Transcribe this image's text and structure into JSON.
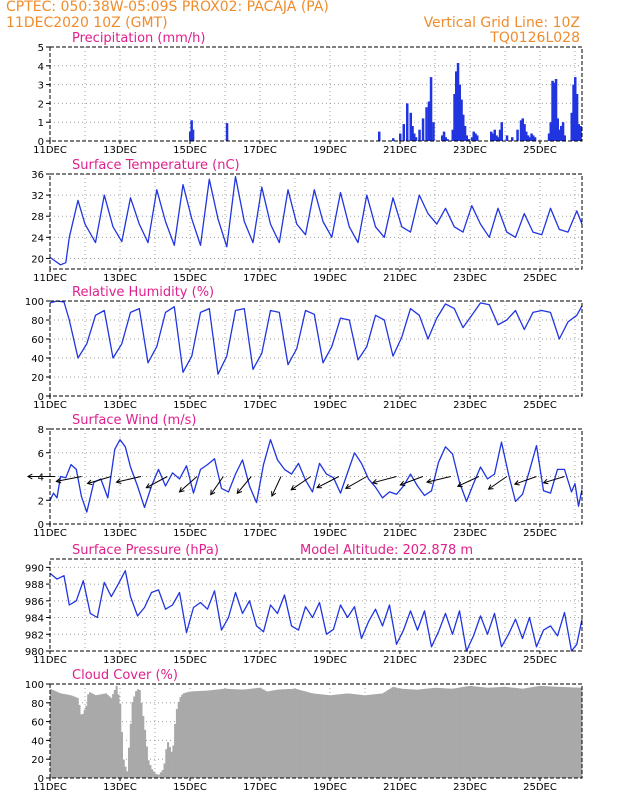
{
  "header": {
    "line1_left": "CPTEC:   050:38W-05:09S   PROX02: PACAJA (PA)",
    "line2_left": "11DEC2020 10Z (GMT)",
    "line1_right": "Vertical Grid Line: 10Z",
    "line2_right": "TQ0126L028"
  },
  "colors": {
    "header": "#f08c2c",
    "panel_title": "#e0208c",
    "series": "#2035e0",
    "cloud": "#a9a9a9",
    "grid": "#a0a0a0"
  },
  "chart_data": [
    {
      "id": "precipitation",
      "type": "bar",
      "title": "Precipitation (mm/h)",
      "x_unit": "days since 11DEC2020 10Z",
      "xlim": [
        0,
        15.2
      ],
      "ylim": [
        0,
        5
      ],
      "yticks": [
        0,
        1,
        2,
        3,
        4,
        5
      ],
      "xtick_labels": [
        "11DEC",
        "13DEC",
        "15DEC",
        "17DEC",
        "19DEC",
        "21DEC",
        "23DEC",
        "25DEC"
      ],
      "x": [
        4.0,
        4.04,
        4.08,
        5.05,
        9.4,
        9.8,
        10.0,
        10.1,
        10.2,
        10.3,
        10.35,
        10.4,
        10.45,
        10.55,
        10.65,
        10.75,
        10.82,
        10.88,
        10.95,
        11.2,
        11.25,
        11.3,
        11.35,
        11.5,
        11.55,
        11.6,
        11.65,
        11.7,
        11.75,
        11.8,
        11.85,
        11.9,
        11.95,
        12.05,
        12.1,
        12.15,
        12.2,
        12.6,
        12.65,
        12.7,
        12.75,
        12.8,
        12.85,
        12.9,
        13.05,
        13.2,
        13.35,
        13.45,
        13.5,
        13.55,
        13.6,
        13.65,
        13.7,
        13.75,
        13.8,
        13.85,
        14.25,
        14.3,
        14.35,
        14.4,
        14.45,
        14.5,
        14.55,
        14.6,
        14.65,
        14.7,
        14.9,
        14.95,
        15.0,
        15.05,
        15.1,
        15.15
      ],
      "values": [
        0.5,
        1.1,
        0.6,
        0.95,
        0.5,
        0.15,
        0.4,
        0.9,
        2.0,
        1.5,
        0.8,
        0.4,
        0.2,
        0.6,
        1.2,
        1.8,
        2.1,
        3.4,
        1.0,
        0.3,
        0.5,
        0.2,
        0.1,
        0.6,
        2.5,
        3.7,
        4.15,
        3.0,
        2.2,
        1.4,
        0.8,
        0.3,
        0.1,
        0.2,
        0.5,
        0.4,
        0.3,
        0.5,
        0.4,
        0.6,
        0.3,
        0.2,
        0.6,
        1.0,
        0.3,
        0.2,
        0.6,
        1.1,
        1.2,
        0.9,
        0.5,
        0.3,
        0.2,
        0.4,
        0.3,
        0.2,
        0.4,
        1.0,
        3.2,
        3.1,
        3.3,
        1.2,
        0.6,
        0.8,
        1.0,
        0.3,
        1.5,
        3.0,
        3.4,
        2.5,
        0.9,
        0.8
      ]
    },
    {
      "id": "temperature",
      "type": "line",
      "title": "Surface Temperature (nC)",
      "xlim": [
        0,
        15.2
      ],
      "ylim": [
        18,
        36
      ],
      "yticks": [
        20,
        24,
        28,
        32,
        36
      ],
      "xtick_labels": [
        "11DEC",
        "13DEC",
        "15DEC",
        "17DEC",
        "19DEC",
        "21DEC",
        "23DEC",
        "25DEC"
      ],
      "x": [
        0,
        0.15,
        0.3,
        0.45,
        0.55,
        0.8,
        1.0,
        1.3,
        1.55,
        1.8,
        2.05,
        2.3,
        2.55,
        2.8,
        3.05,
        3.3,
        3.55,
        3.8,
        4.05,
        4.3,
        4.55,
        4.8,
        5.05,
        5.3,
        5.55,
        5.8,
        6.05,
        6.3,
        6.55,
        6.8,
        7.05,
        7.3,
        7.55,
        7.8,
        8.05,
        8.3,
        8.55,
        8.8,
        9.05,
        9.3,
        9.55,
        9.8,
        10.05,
        10.3,
        10.55,
        10.8,
        11.05,
        11.3,
        11.55,
        11.8,
        12.05,
        12.3,
        12.55,
        12.8,
        13.05,
        13.3,
        13.55,
        13.8,
        14.05,
        14.3,
        14.55,
        14.8,
        15.05,
        15.2
      ],
      "values": [
        20.2,
        19.5,
        18.8,
        19.2,
        24.0,
        31.0,
        26.5,
        23.0,
        32.0,
        26.0,
        23.2,
        31.5,
        26.5,
        23.0,
        33.0,
        27.0,
        22.5,
        34.0,
        27.5,
        22.5,
        35.0,
        27.5,
        22.2,
        35.5,
        27.0,
        23.0,
        33.5,
        26.5,
        23.0,
        33.0,
        26.5,
        24.5,
        33.0,
        27.0,
        24.0,
        32.5,
        26.0,
        23.0,
        32.0,
        26.0,
        24.0,
        31.5,
        26.0,
        25.0,
        32.0,
        28.5,
        26.5,
        29.5,
        26.0,
        25.0,
        30.0,
        26.5,
        24.0,
        29.5,
        25.0,
        24.0,
        28.5,
        25.0,
        24.5,
        29.5,
        25.5,
        25.0,
        29.0,
        26.5
      ]
    },
    {
      "id": "humidity",
      "type": "line",
      "title": "Relative Humidity (%)",
      "xlim": [
        0,
        15.2
      ],
      "ylim": [
        0,
        100
      ],
      "yticks": [
        0,
        20,
        40,
        60,
        80,
        100
      ],
      "xtick_labels": [
        "11DEC",
        "13DEC",
        "15DEC",
        "17DEC",
        "19DEC",
        "21DEC",
        "23DEC",
        "25DEC"
      ],
      "x": [
        0,
        0.2,
        0.4,
        0.55,
        0.8,
        1.05,
        1.3,
        1.55,
        1.8,
        2.05,
        2.3,
        2.55,
        2.8,
        3.05,
        3.3,
        3.55,
        3.8,
        4.05,
        4.3,
        4.55,
        4.8,
        5.05,
        5.3,
        5.55,
        5.8,
        6.05,
        6.3,
        6.55,
        6.8,
        7.05,
        7.3,
        7.55,
        7.8,
        8.05,
        8.3,
        8.55,
        8.8,
        9.05,
        9.3,
        9.55,
        9.8,
        10.05,
        10.3,
        10.55,
        10.8,
        11.05,
        11.3,
        11.55,
        11.8,
        12.05,
        12.3,
        12.55,
        12.8,
        13.05,
        13.3,
        13.55,
        13.8,
        14.05,
        14.3,
        14.55,
        14.8,
        15.05,
        15.2
      ],
      "values": [
        98,
        100,
        99,
        80,
        40,
        55,
        85,
        90,
        40,
        55,
        88,
        92,
        35,
        52,
        88,
        94,
        25,
        42,
        88,
        92,
        23,
        42,
        90,
        92,
        28,
        45,
        90,
        88,
        33,
        50,
        90,
        86,
        35,
        52,
        82,
        80,
        38,
        52,
        85,
        80,
        42,
        62,
        92,
        85,
        60,
        82,
        97,
        92,
        72,
        85,
        98,
        96,
        75,
        80,
        90,
        70,
        88,
        90,
        88,
        60,
        78,
        85,
        95
      ]
    },
    {
      "id": "wind",
      "type": "line",
      "title": "Surface Wind (m/s)",
      "xlim": [
        0,
        15.2
      ],
      "ylim": [
        0,
        8
      ],
      "yticks": [
        0,
        2,
        4,
        6,
        8
      ],
      "xtick_labels": [
        "11DEC",
        "13DEC",
        "15DEC",
        "17DEC",
        "19DEC",
        "21DEC",
        "23DEC",
        "25DEC"
      ],
      "x": [
        0,
        0.1,
        0.2,
        0.3,
        0.45,
        0.6,
        0.75,
        0.9,
        1.05,
        1.25,
        1.45,
        1.65,
        1.85,
        2.0,
        2.15,
        2.3,
        2.5,
        2.7,
        2.9,
        3.1,
        3.3,
        3.5,
        3.7,
        3.9,
        4.1,
        4.3,
        4.5,
        4.7,
        4.9,
        5.1,
        5.3,
        5.5,
        5.7,
        5.9,
        6.1,
        6.3,
        6.5,
        6.7,
        6.9,
        7.1,
        7.3,
        7.5,
        7.7,
        7.9,
        8.1,
        8.3,
        8.5,
        8.7,
        8.9,
        9.1,
        9.3,
        9.5,
        9.7,
        9.9,
        10.1,
        10.3,
        10.5,
        10.7,
        10.9,
        11.1,
        11.3,
        11.5,
        11.7,
        11.9,
        12.1,
        12.3,
        12.5,
        12.7,
        12.9,
        13.1,
        13.3,
        13.5,
        13.7,
        13.9,
        14.1,
        14.3,
        14.5,
        14.7,
        14.9,
        15.0,
        15.1,
        15.2
      ],
      "values": [
        2.0,
        2.6,
        2.2,
        4.0,
        3.9,
        5.0,
        4.6,
        2.3,
        1.0,
        3.5,
        3.8,
        2.2,
        6.3,
        7.1,
        6.5,
        4.8,
        3.2,
        1.4,
        3.2,
        4.6,
        3.2,
        4.3,
        3.8,
        4.9,
        2.6,
        4.6,
        5.0,
        5.5,
        3.0,
        2.7,
        4.2,
        5.4,
        3.2,
        1.8,
        5.0,
        7.1,
        5.4,
        4.6,
        4.2,
        5.1,
        3.7,
        2.7,
        5.1,
        4.2,
        3.9,
        2.6,
        4.3,
        6.0,
        5.1,
        3.8,
        3.1,
        2.2,
        2.7,
        2.5,
        3.2,
        4.2,
        3.2,
        2.4,
        2.8,
        5.2,
        6.5,
        5.9,
        3.5,
        1.9,
        3.4,
        4.8,
        3.8,
        4.2,
        6.9,
        4.2,
        1.9,
        2.5,
        4.5,
        6.6,
        2.8,
        2.6,
        4.6,
        4.6,
        2.7,
        3.4,
        1.5,
        2.9
      ],
      "vectors": [
        {
          "x": 0.15,
          "u": -3.9,
          "v": 0.0
        },
        {
          "x": 0.9,
          "u": -3.6,
          "v": -0.7
        },
        {
          "x": 1.75,
          "u": -3.4,
          "v": -1.0
        },
        {
          "x": 2.6,
          "u": -3.5,
          "v": -0.8
        },
        {
          "x": 3.35,
          "u": -3.0,
          "v": -1.6
        },
        {
          "x": 4.2,
          "u": -2.5,
          "v": -2.2
        },
        {
          "x": 4.95,
          "u": -1.8,
          "v": -2.6
        },
        {
          "x": 5.75,
          "u": -2.0,
          "v": -2.4
        },
        {
          "x": 6.6,
          "u": -1.3,
          "v": -2.8
        },
        {
          "x": 7.45,
          "u": -2.8,
          "v": -1.9
        },
        {
          "x": 8.25,
          "u": -3.1,
          "v": -1.6
        },
        {
          "x": 9.05,
          "u": -3.0,
          "v": -1.7
        },
        {
          "x": 9.9,
          "u": -3.4,
          "v": -0.9
        },
        {
          "x": 10.65,
          "u": -3.2,
          "v": -1.2
        },
        {
          "x": 11.45,
          "u": -3.4,
          "v": -0.8
        },
        {
          "x": 12.25,
          "u": -3.0,
          "v": -1.4
        },
        {
          "x": 13.05,
          "u": -2.6,
          "v": -1.8
        },
        {
          "x": 13.9,
          "u": -3.1,
          "v": -1.1
        },
        {
          "x": 14.7,
          "u": -3.0,
          "v": -0.9
        }
      ]
    },
    {
      "id": "pressure",
      "type": "line",
      "title": "Surface Pressure (hPa)",
      "annotation": "Model Altitude: 202.878  m",
      "xlim": [
        0,
        15.2
      ],
      "ylim": [
        980,
        991
      ],
      "yticks": [
        980,
        982,
        984,
        986,
        988,
        990
      ],
      "xtick_labels": [
        "11DEC",
        "13DEC",
        "15DEC",
        "17DEC",
        "19DEC",
        "21DEC",
        "23DEC",
        "25DEC"
      ],
      "x": [
        0,
        0.2,
        0.4,
        0.55,
        0.75,
        0.95,
        1.15,
        1.35,
        1.55,
        1.75,
        1.95,
        2.15,
        2.3,
        2.5,
        2.7,
        2.9,
        3.1,
        3.3,
        3.5,
        3.7,
        3.9,
        4.1,
        4.3,
        4.5,
        4.7,
        4.9,
        5.1,
        5.3,
        5.5,
        5.7,
        5.9,
        6.1,
        6.3,
        6.5,
        6.7,
        6.9,
        7.1,
        7.3,
        7.5,
        7.7,
        7.9,
        8.1,
        8.3,
        8.5,
        8.7,
        8.9,
        9.1,
        9.3,
        9.5,
        9.7,
        9.9,
        10.1,
        10.3,
        10.5,
        10.7,
        10.9,
        11.1,
        11.3,
        11.5,
        11.7,
        11.9,
        12.1,
        12.3,
        12.5,
        12.7,
        12.9,
        13.1,
        13.3,
        13.5,
        13.7,
        13.9,
        14.1,
        14.3,
        14.5,
        14.7,
        14.9,
        15.05,
        15.2
      ],
      "values": [
        989.3,
        988.6,
        989.0,
        985.5,
        986.0,
        988.4,
        984.5,
        984.0,
        988.2,
        986.5,
        988.0,
        989.6,
        986.5,
        984.2,
        985.2,
        987.0,
        987.3,
        985.0,
        985.5,
        987.0,
        982.2,
        985.2,
        985.8,
        985.0,
        987.2,
        982.5,
        984.0,
        987.0,
        984.5,
        986.0,
        983.0,
        982.3,
        985.5,
        984.5,
        986.7,
        983.0,
        982.5,
        985.3,
        984.0,
        985.8,
        982.0,
        982.6,
        985.5,
        984.0,
        985.3,
        981.5,
        983.5,
        985.0,
        983.0,
        985.5,
        980.8,
        982.5,
        984.8,
        982.5,
        984.8,
        980.5,
        982.3,
        984.5,
        982.0,
        984.8,
        980.0,
        981.8,
        984.2,
        982.0,
        984.5,
        980.5,
        982.0,
        983.8,
        981.5,
        984.0,
        980.5,
        982.5,
        983.0,
        981.8,
        984.6,
        980.0,
        980.8,
        983.8
      ]
    },
    {
      "id": "cloud",
      "type": "area",
      "title": "Cloud Cover (%)",
      "xlim": [
        0,
        15.2
      ],
      "ylim": [
        0,
        100
      ],
      "yticks": [
        0,
        20,
        40,
        60,
        80,
        100
      ],
      "xtick_labels": [
        "11DEC",
        "13DEC",
        "15DEC",
        "17DEC",
        "19DEC",
        "21DEC",
        "23DEC",
        "25DEC"
      ],
      "x": [
        0,
        0.3,
        0.6,
        0.8,
        0.9,
        1.05,
        1.1,
        1.3,
        1.6,
        1.75,
        1.9,
        2.0,
        2.1,
        2.2,
        2.25,
        2.35,
        2.45,
        2.55,
        2.7,
        2.8,
        2.9,
        3.0,
        3.1,
        3.25,
        3.35,
        3.5,
        3.6,
        3.7,
        3.8,
        4.0,
        4.5,
        5.0,
        5.5,
        6.0,
        6.2,
        6.5,
        7.0,
        7.5,
        8.0,
        8.5,
        9.0,
        9.5,
        9.8,
        10.0,
        10.5,
        11.0,
        11.5,
        12.0,
        12.5,
        13.0,
        13.5,
        14.0,
        14.5,
        15.2
      ],
      "values": [
        95,
        90,
        88,
        85,
        65,
        78,
        92,
        88,
        90,
        85,
        98,
        80,
        20,
        5,
        30,
        80,
        92,
        96,
        55,
        20,
        10,
        5,
        3,
        10,
        40,
        25,
        70,
        85,
        90,
        92,
        93,
        95,
        94,
        96,
        92,
        94,
        95,
        90,
        88,
        90,
        88,
        90,
        97,
        95,
        94,
        96,
        95,
        98,
        96,
        97,
        95,
        98,
        97,
        96
      ]
    }
  ]
}
